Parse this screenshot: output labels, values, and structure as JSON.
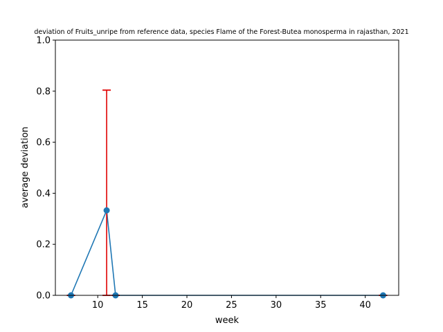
{
  "chart_data": {
    "type": "line",
    "title": "deviation of Fruits_unripe from reference data, species Flame of the Forest-Butea monosperma in rajasthan, 2021",
    "xlabel": "week",
    "ylabel": "average deviation",
    "xlim": [
      5.25,
      43.75
    ],
    "ylim": [
      0,
      1
    ],
    "xticks": [
      10,
      15,
      20,
      25,
      30,
      35,
      40
    ],
    "yticks": [
      0.0,
      0.2,
      0.4,
      0.6,
      0.8,
      1.0
    ],
    "xtick_labels": [
      "10",
      "15",
      "20",
      "25",
      "30",
      "35",
      "40"
    ],
    "ytick_labels": [
      "0.0",
      "0.2",
      "0.4",
      "0.6",
      "0.8",
      "1.0"
    ],
    "grid": false,
    "series": [
      {
        "color": "#1f77b4",
        "marker": "circle",
        "x": [
          7,
          11,
          12,
          42
        ],
        "y": [
          0.0,
          0.333,
          0.0,
          0.0
        ],
        "yerr": [
          0.0,
          0.471,
          0.0,
          0.0
        ],
        "error_color": "#e00000"
      }
    ]
  }
}
